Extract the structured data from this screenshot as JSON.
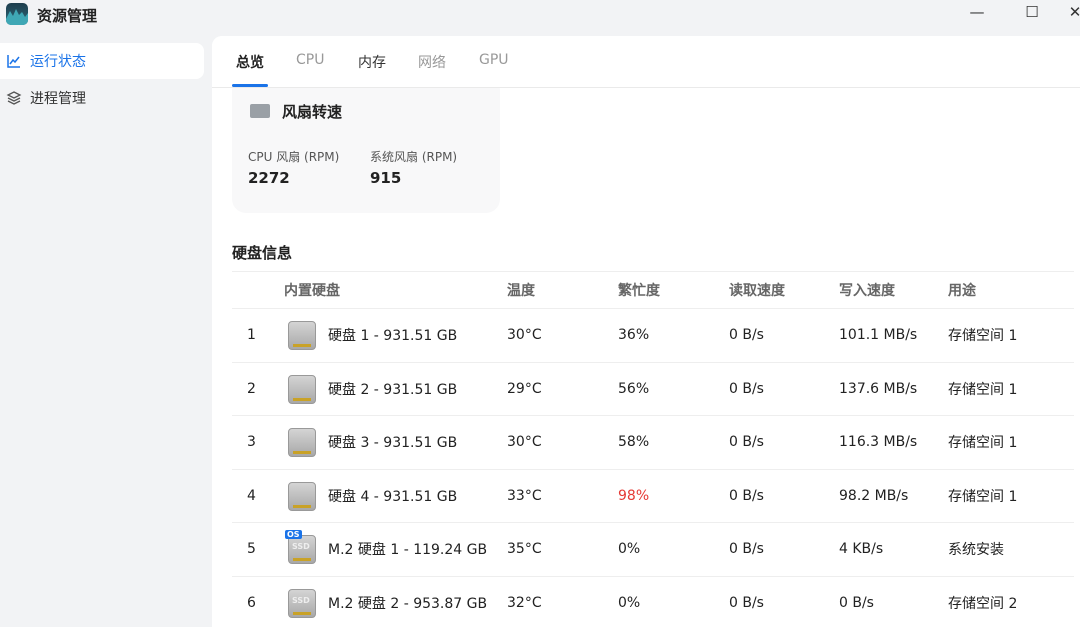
{
  "app": {
    "title": "资源管理"
  },
  "window": {
    "minimize": "—",
    "maximize": "☐",
    "close": "✕"
  },
  "sidebar": {
    "items": [
      {
        "label": "运行状态",
        "icon": "line-chart-icon",
        "active": true
      },
      {
        "label": "进程管理",
        "icon": "layers-icon",
        "active": false
      }
    ]
  },
  "tabs": [
    {
      "label": "总览",
      "active": true
    },
    {
      "label": "CPU"
    },
    {
      "label": "内存"
    },
    {
      "label": "网络"
    },
    {
      "label": "GPU"
    }
  ],
  "fan": {
    "title": "风扇转速",
    "cpu_label": "CPU 风扇 (RPM)",
    "cpu_value": "2272",
    "sys_label": "系统风扇 (RPM)",
    "sys_value": "915"
  },
  "disks": {
    "title": "硬盘信息",
    "headers": [
      "内置硬盘",
      "温度",
      "繁忙度",
      "读取速度",
      "写入速度",
      "用途"
    ],
    "rows": [
      {
        "no": "1",
        "type": "HDD",
        "name": "硬盘 1 - 931.51 GB",
        "temp": "30°C",
        "busy": "36%",
        "read": "0 B/s",
        "write": "101.1 MB/s",
        "use": "存储空间 1"
      },
      {
        "no": "2",
        "type": "HDD",
        "name": "硬盘 2 - 931.51 GB",
        "temp": "29°C",
        "busy": "56%",
        "read": "0 B/s",
        "write": "137.6 MB/s",
        "use": "存储空间 1"
      },
      {
        "no": "3",
        "type": "HDD",
        "name": "硬盘 3 - 931.51 GB",
        "temp": "30°C",
        "busy": "58%",
        "read": "0 B/s",
        "write": "116.3 MB/s",
        "use": "存储空间 1"
      },
      {
        "no": "4",
        "type": "HDD",
        "name": "硬盘 4 - 931.51 GB",
        "temp": "33°C",
        "busy": "98%",
        "busy_alert": true,
        "read": "0 B/s",
        "write": "98.2 MB/s",
        "use": "存储空间 1"
      },
      {
        "no": "5",
        "type": "SSD",
        "os": "OS",
        "name": "M.2 硬盘 1 - 119.24 GB",
        "temp": "35°C",
        "busy": "0%",
        "read": "0 B/s",
        "write": "4 KB/s",
        "use": "系统安装"
      },
      {
        "no": "6",
        "type": "SSD",
        "name": "M.2 硬盘 2 - 953.87 GB",
        "temp": "32°C",
        "busy": "0%",
        "read": "0 B/s",
        "write": "0 B/s",
        "use": "存储空间 2"
      }
    ]
  },
  "colors": {
    "accent": "#1a73e8",
    "alert": "#e53935"
  }
}
